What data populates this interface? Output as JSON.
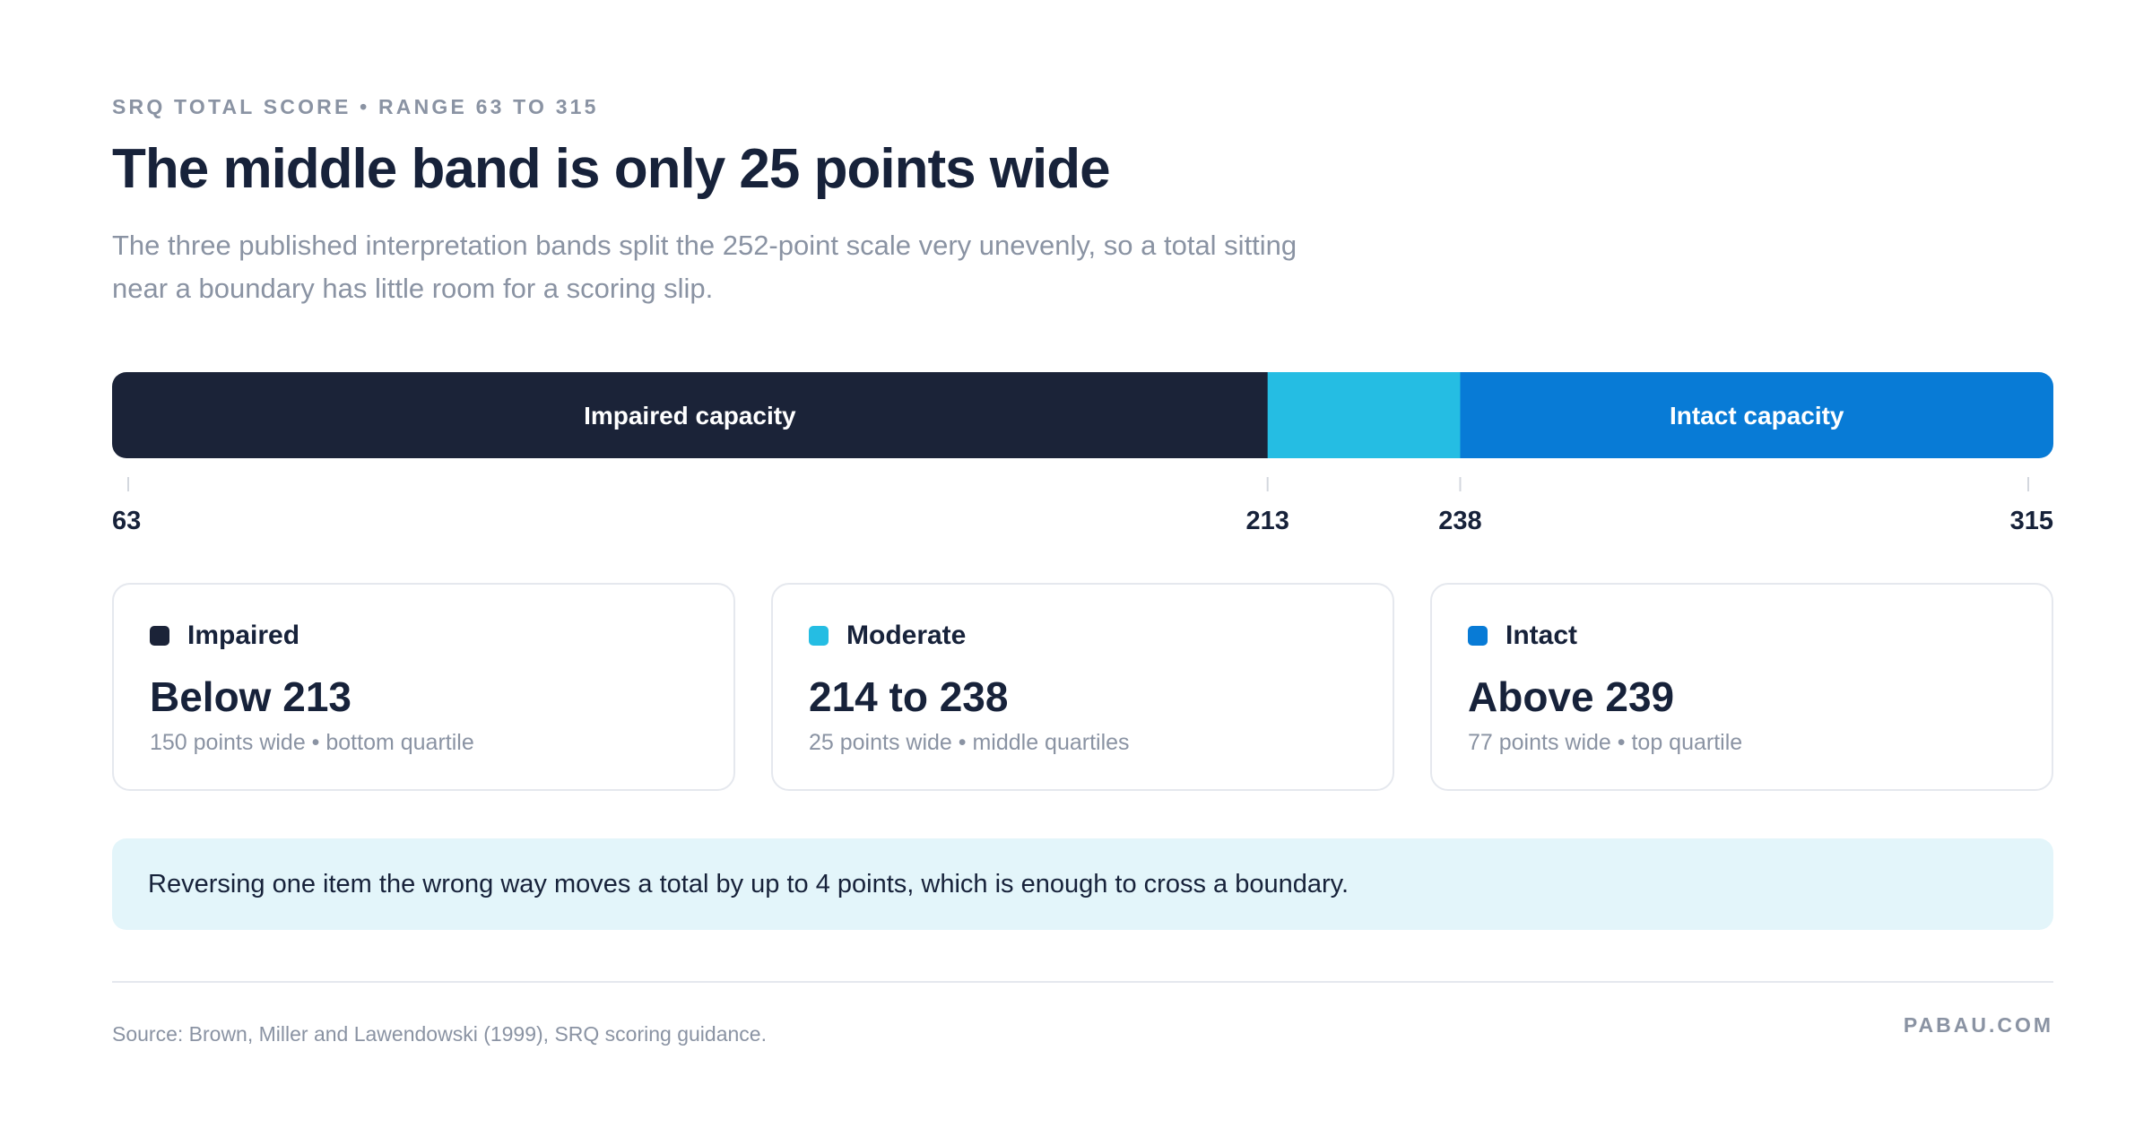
{
  "header": {
    "eyebrow": "SRQ TOTAL SCORE • RANGE 63 TO 315",
    "title": "The middle band is only 25 points wide",
    "subtitle": "The three published interpretation bands split the 252-point scale very unevenly, so a total sitting near a boundary has little room for a scoring slip."
  },
  "chart_data": {
    "type": "bar",
    "orientation": "horizontal-stacked",
    "xlim": [
      63,
      315
    ],
    "ticks": [
      63,
      213,
      238,
      315
    ],
    "segments": [
      {
        "label": "Impaired capacity",
        "start": 63,
        "end": 213,
        "color": "#1b2338"
      },
      {
        "label": "",
        "start": 213,
        "end": 238,
        "color": "#25bde3"
      },
      {
        "label": "Intact capacity",
        "start": 238,
        "end": 315,
        "color": "#087bd6"
      }
    ]
  },
  "cards": [
    {
      "name": "Impaired",
      "range": "Below 213",
      "detail": "150 points wide • bottom quartile",
      "color": "#1b2338"
    },
    {
      "name": "Moderate",
      "range": "214 to 238",
      "detail": "25 points wide • middle quartiles",
      "color": "#25bde3"
    },
    {
      "name": "Intact",
      "range": "Above 239",
      "detail": "77 points wide • top quartile",
      "color": "#087bd6"
    }
  ],
  "callout": "Reversing one item the wrong way moves a total by up to 4 points, which is enough to cross a boundary.",
  "footer": {
    "source": "Source: Brown, Miller and Lawendowski (1999), SRQ scoring guidance.",
    "brand": "PABAU.COM"
  }
}
